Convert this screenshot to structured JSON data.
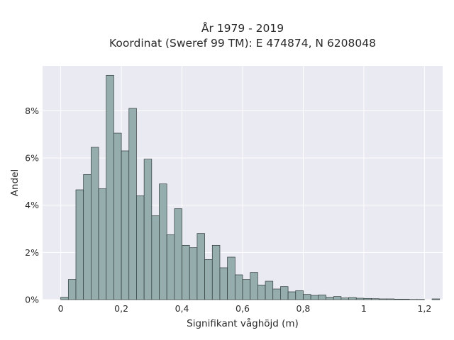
{
  "chart_data": {
    "type": "bar",
    "title": "År 1979 - 2019",
    "subtitle": "Koordinat (Sweref 99 TM): E 474874, N 6208048",
    "xlabel": "Signifikant våghöjd (m)",
    "ylabel": "Andel",
    "xlim": [
      -0.06,
      1.26
    ],
    "ylim": [
      0,
      9.9
    ],
    "x_ticks": [
      0,
      0.2,
      0.4,
      0.6,
      0.8,
      1,
      1.2
    ],
    "x_tick_labels": [
      "0",
      "0,2",
      "0,4",
      "0,6",
      "0,8",
      "1",
      "1,2"
    ],
    "y_ticks": [
      0,
      2,
      4,
      6,
      8
    ],
    "y_tick_labels": [
      "0%",
      "2%",
      "4%",
      "6%",
      "8%"
    ],
    "grid": true,
    "bin_start": 0,
    "bin_width": 0.025,
    "values": [
      0.1,
      0.85,
      4.65,
      5.3,
      6.45,
      4.7,
      9.5,
      7.05,
      6.3,
      8.1,
      4.4,
      5.95,
      3.55,
      4.9,
      2.75,
      3.85,
      2.3,
      2.2,
      2.8,
      1.7,
      2.3,
      1.35,
      1.8,
      1.05,
      0.85,
      1.15,
      0.62,
      0.78,
      0.45,
      0.55,
      0.33,
      0.38,
      0.22,
      0.18,
      0.2,
      0.1,
      0.13,
      0.07,
      0.09,
      0.06,
      0.05,
      0.04,
      0.03,
      0.03,
      0.02,
      0.02,
      0.01,
      0.01,
      0,
      0.03
    ]
  }
}
